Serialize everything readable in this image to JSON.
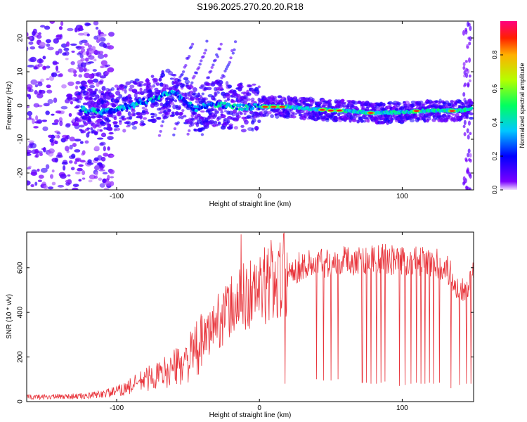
{
  "title": "S196.2025.270.20.20.R18",
  "chart_data": [
    {
      "type": "heatmap",
      "name": "spectrogram",
      "xlabel": "Height of straight line (km)",
      "ylabel": "Frequency (Hz)",
      "xlim": [
        -163,
        150
      ],
      "ylim": [
        -25,
        25
      ],
      "xticks": [
        -100,
        0,
        100
      ],
      "xtick_labels": [
        "-100",
        "0",
        "100"
      ],
      "yticks": [
        -20,
        -10,
        0,
        10,
        20
      ],
      "ytick_labels": [
        "-20",
        "-10",
        "0",
        "10",
        "20"
      ],
      "colorbar": {
        "label": "Normalized spectral amplitude",
        "range": [
          0,
          1
        ],
        "ticks": [
          0,
          0.2,
          0.4,
          0.6,
          0.8
        ],
        "tick_labels": [
          "0.0",
          "0.2",
          "0.4",
          "0.6",
          "0.8"
        ]
      },
      "ridge": [
        {
          "x": -125,
          "y": -1.0
        },
        {
          "x": -110,
          "y": -2.0
        },
        {
          "x": -90,
          "y": 0.0
        },
        {
          "x": -75,
          "y": 2.0
        },
        {
          "x": -60,
          "y": 4.0
        },
        {
          "x": -45,
          "y": -1.0
        },
        {
          "x": -30,
          "y": 0.5
        },
        {
          "x": -15,
          "y": -0.5
        },
        {
          "x": 0,
          "y": -0.3
        },
        {
          "x": 20,
          "y": -0.4
        },
        {
          "x": 40,
          "y": -1.2
        },
        {
          "x": 60,
          "y": -1.5
        },
        {
          "x": 80,
          "y": -2.2
        },
        {
          "x": 100,
          "y": -2.0
        },
        {
          "x": 120,
          "y": -1.5
        },
        {
          "x": 140,
          "y": -1.5
        },
        {
          "x": 148,
          "y": -1.0
        }
      ]
    },
    {
      "type": "line",
      "name": "snr",
      "xlabel": "Height of straight line (km)",
      "ylabel": "SNR (10 * v/v)",
      "xlim": [
        -163,
        150
      ],
      "ylim": [
        0,
        760
      ],
      "xticks": [
        -100,
        0,
        100
      ],
      "xtick_labels": [
        "-100",
        "0",
        "100"
      ],
      "yticks": [
        0,
        200,
        400,
        600
      ],
      "ytick_labels": [
        "0",
        "200",
        "400",
        "600"
      ],
      "color": "#e8333a",
      "envelope": [
        {
          "x": -163,
          "y": 20
        },
        {
          "x": -120,
          "y": 25
        },
        {
          "x": -100,
          "y": 45
        },
        {
          "x": -90,
          "y": 70
        },
        {
          "x": -80,
          "y": 100
        },
        {
          "x": -70,
          "y": 120
        },
        {
          "x": -60,
          "y": 150
        },
        {
          "x": -50,
          "y": 190
        },
        {
          "x": -40,
          "y": 260
        },
        {
          "x": -30,
          "y": 360
        },
        {
          "x": -20,
          "y": 420
        },
        {
          "x": -10,
          "y": 470
        },
        {
          "x": 0,
          "y": 500
        },
        {
          "x": 10,
          "y": 540
        },
        {
          "x": 20,
          "y": 580
        },
        {
          "x": 30,
          "y": 610
        },
        {
          "x": 50,
          "y": 630
        },
        {
          "x": 80,
          "y": 640
        },
        {
          "x": 110,
          "y": 630
        },
        {
          "x": 130,
          "y": 610
        },
        {
          "x": 140,
          "y": 500
        },
        {
          "x": 150,
          "y": 560
        }
      ],
      "drops": [
        {
          "x": 40,
          "y": 100
        },
        {
          "x": 45,
          "y": 95
        },
        {
          "x": 50,
          "y": 95
        },
        {
          "x": 55,
          "y": 100
        },
        {
          "x": 72,
          "y": 85
        },
        {
          "x": 75,
          "y": 85
        },
        {
          "x": 78,
          "y": 80
        },
        {
          "x": 82,
          "y": 80
        },
        {
          "x": 85,
          "y": 85
        },
        {
          "x": 88,
          "y": 90
        },
        {
          "x": 98,
          "y": 70
        },
        {
          "x": 102,
          "y": 75
        },
        {
          "x": 106,
          "y": 80
        },
        {
          "x": 110,
          "y": 85
        },
        {
          "x": 113,
          "y": 80
        },
        {
          "x": 116,
          "y": 80
        },
        {
          "x": 119,
          "y": 85
        },
        {
          "x": 122,
          "y": 80
        },
        {
          "x": 126,
          "y": 85
        },
        {
          "x": 134,
          "y": 60
        },
        {
          "x": 140,
          "y": 75
        },
        {
          "x": 145,
          "y": 80
        },
        {
          "x": 148,
          "y": 80
        }
      ],
      "spikes": [
        {
          "x": -13,
          "y": 750
        },
        {
          "x": 8,
          "y": 725
        },
        {
          "x": 18,
          "y": 80
        }
      ]
    }
  ]
}
